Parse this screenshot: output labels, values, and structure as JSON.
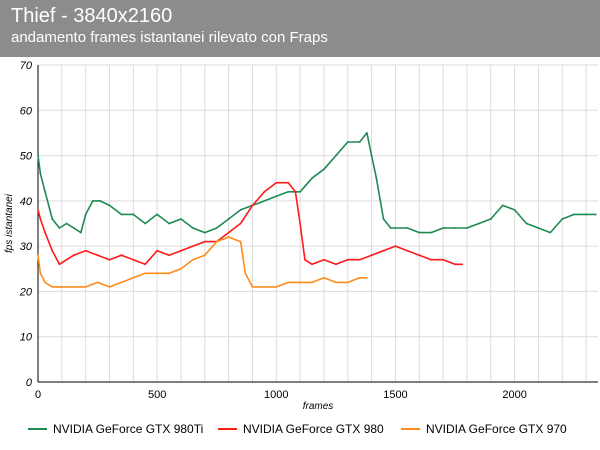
{
  "header": {
    "title": "Thief - 3840x2160",
    "subtitle": "andamento frames istantanei rilevato con Fraps"
  },
  "colors": {
    "header_bg": "#8c8c8c",
    "series_980ti": "#1f8a52",
    "series_980": "#ff1a1a",
    "series_970": "#ff8c1a",
    "grid": "#dcdcdc"
  },
  "chart_data": {
    "type": "line",
    "title": "Thief - 3840x2160",
    "subtitle": "andamento frames istantanei rilevato con Fraps",
    "xlabel": "frames",
    "ylabel": "fps istantanei",
    "xlim": [
      0,
      2350
    ],
    "ylim": [
      0,
      70
    ],
    "x_ticks": [
      0,
      500,
      1000,
      1500,
      2000
    ],
    "y_ticks": [
      0,
      10,
      20,
      30,
      40,
      50,
      60,
      70
    ],
    "grid": true,
    "legend_position": "bottom",
    "series": [
      {
        "name": "NVIDIA GeForce GTX 980Ti",
        "color": "#1f8a52",
        "x": [
          0,
          10,
          30,
          60,
          90,
          120,
          150,
          180,
          200,
          230,
          260,
          300,
          350,
          400,
          450,
          500,
          550,
          600,
          650,
          700,
          750,
          800,
          850,
          900,
          950,
          1000,
          1050,
          1100,
          1150,
          1200,
          1250,
          1300,
          1350,
          1380,
          1400,
          1420,
          1450,
          1480,
          1500,
          1550,
          1600,
          1650,
          1700,
          1750,
          1800,
          1850,
          1900,
          1950,
          2000,
          2050,
          2100,
          2150,
          2200,
          2250,
          2300,
          2340
        ],
        "y": [
          50,
          46,
          42,
          36,
          34,
          35,
          34,
          33,
          37,
          40,
          40,
          39,
          37,
          37,
          35,
          37,
          35,
          36,
          34,
          33,
          34,
          36,
          38,
          39,
          40,
          41,
          42,
          42,
          45,
          47,
          50,
          53,
          53,
          55,
          50,
          45,
          36,
          34,
          34,
          34,
          33,
          33,
          34,
          34,
          34,
          35,
          36,
          39,
          38,
          35,
          34,
          33,
          36,
          37,
          37,
          37
        ]
      },
      {
        "name": "NVIDIA GeForce GTX 980",
        "color": "#ff1a1a",
        "x": [
          0,
          10,
          30,
          60,
          90,
          120,
          150,
          200,
          250,
          300,
          350,
          400,
          450,
          500,
          550,
          600,
          650,
          700,
          750,
          800,
          850,
          900,
          950,
          1000,
          1050,
          1080,
          1100,
          1120,
          1150,
          1200,
          1250,
          1300,
          1350,
          1400,
          1450,
          1500,
          1550,
          1600,
          1650,
          1700,
          1750,
          1780
        ],
        "y": [
          38,
          36,
          33,
          29,
          26,
          27,
          28,
          29,
          28,
          27,
          28,
          27,
          26,
          29,
          28,
          29,
          30,
          31,
          31,
          33,
          35,
          39,
          42,
          44,
          44,
          42,
          35,
          27,
          26,
          27,
          26,
          27,
          27,
          28,
          29,
          30,
          29,
          28,
          27,
          27,
          26,
          26
        ]
      },
      {
        "name": "NVIDIA GeForce GTX 970",
        "color": "#ff8c1a",
        "x": [
          0,
          10,
          30,
          60,
          100,
          150,
          200,
          250,
          300,
          350,
          400,
          450,
          500,
          550,
          600,
          650,
          700,
          750,
          800,
          850,
          870,
          900,
          950,
          1000,
          1050,
          1100,
          1150,
          1200,
          1250,
          1300,
          1350,
          1380
        ],
        "y": [
          28,
          24,
          22,
          21,
          21,
          21,
          21,
          22,
          21,
          22,
          23,
          24,
          24,
          24,
          25,
          27,
          28,
          31,
          32,
          31,
          24,
          21,
          21,
          21,
          22,
          22,
          22,
          23,
          22,
          22,
          23,
          23
        ]
      }
    ]
  }
}
